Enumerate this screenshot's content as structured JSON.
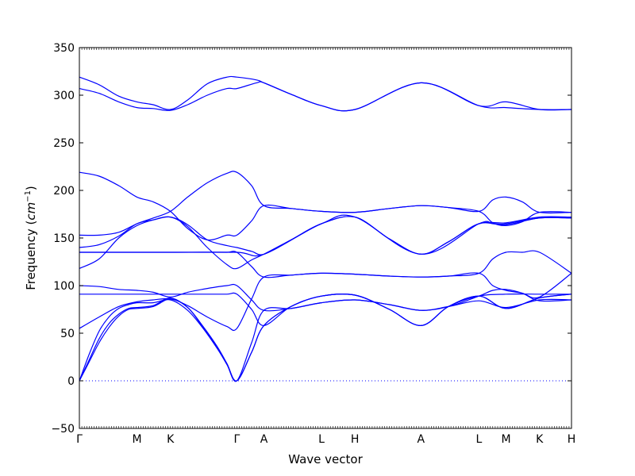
{
  "chart_data": {
    "type": "line",
    "xlabel": "Wave vector",
    "ylabel": "Frequency",
    "ylabel_unit_base": "cm",
    "ylabel_unit_exp": "−1",
    "ylim": [
      -50,
      350
    ],
    "yticks": [
      -50,
      0,
      50,
      100,
      150,
      200,
      250,
      300,
      350
    ],
    "grid": false,
    "line_color": "#0000ff",
    "zero_line": {
      "y": 0,
      "style": "dotted"
    },
    "high_symmetry_points": [
      {
        "label": "Γ",
        "pos": 0
      },
      {
        "label": "M",
        "pos": 0.117
      },
      {
        "label": "K",
        "pos": 0.185
      },
      {
        "label": "Γ",
        "pos": 0.32
      },
      {
        "label": "A",
        "pos": 0.375
      },
      {
        "label": "L",
        "pos": 0.492
      },
      {
        "label": "H",
        "pos": 0.56
      },
      {
        "label": "A",
        "pos": 0.694
      },
      {
        "label": "L",
        "pos": 0.812
      },
      {
        "label": "M",
        "pos": 0.867
      },
      {
        "label": "K",
        "pos": 0.935
      },
      {
        "label": "H",
        "pos": 1.0
      }
    ],
    "series": [
      {
        "x": [
          0,
          0.04,
          0.08,
          0.117,
          0.15,
          0.185,
          0.22,
          0.26,
          0.3,
          0.32,
          0.36,
          0.375,
          0.43,
          0.492,
          0.56,
          0.694,
          0.812,
          0.867,
          0.935,
          1.0
        ],
        "y": [
          319,
          311,
          299,
          293,
          290,
          285,
          295,
          312,
          319,
          319,
          316,
          313,
          301,
          289,
          285,
          313,
          289,
          293,
          285,
          285
        ]
      },
      {
        "x": [
          0,
          0.04,
          0.08,
          0.117,
          0.15,
          0.185,
          0.22,
          0.26,
          0.3,
          0.32,
          0.36,
          0.375,
          0.43,
          0.492,
          0.56,
          0.694,
          0.812,
          0.867,
          0.935,
          1.0
        ],
        "y": [
          307,
          302,
          293,
          287,
          286,
          284,
          290,
          300,
          307,
          307,
          313,
          313,
          301,
          289,
          285,
          313,
          289,
          287,
          285,
          285
        ]
      },
      {
        "x": [
          0,
          0.04,
          0.08,
          0.117,
          0.15,
          0.185,
          0.22,
          0.26,
          0.3,
          0.32,
          0.35,
          0.375,
          0.43,
          0.492,
          0.56,
          0.63,
          0.694,
          0.75,
          0.812,
          0.84,
          0.867,
          0.9,
          0.935,
          1.0
        ],
        "y": [
          219,
          215,
          205,
          193,
          188,
          178,
          160,
          148,
          153,
          153,
          168,
          184,
          181,
          178,
          177,
          181,
          184,
          182,
          178,
          190,
          193,
          188,
          177,
          177
        ]
      },
      {
        "x": [
          0,
          0.04,
          0.08,
          0.117,
          0.15,
          0.185,
          0.22,
          0.26,
          0.3,
          0.32,
          0.35,
          0.375,
          0.43,
          0.492,
          0.56,
          0.63,
          0.694,
          0.75,
          0.812,
          0.84,
          0.867,
          0.9,
          0.935,
          1.0
        ],
        "y": [
          153,
          153,
          156,
          165,
          171,
          178,
          193,
          208,
          218,
          219,
          205,
          184,
          181,
          178,
          177,
          181,
          184,
          182,
          178,
          166,
          163,
          167,
          177,
          177
        ]
      },
      {
        "x": [
          0,
          0.04,
          0.08,
          0.117,
          0.15,
          0.185,
          0.22,
          0.26,
          0.3,
          0.32,
          0.35,
          0.375,
          0.43,
          0.492,
          0.56,
          0.63,
          0.694,
          0.75,
          0.812,
          0.867,
          0.935,
          1.0
        ],
        "y": [
          140,
          143,
          152,
          165,
          169,
          172,
          164,
          148,
          142,
          140,
          136,
          133,
          148,
          165,
          172,
          149,
          133,
          146,
          165,
          166,
          172,
          172
        ]
      },
      {
        "x": [
          0,
          0.04,
          0.08,
          0.117,
          0.15,
          0.185,
          0.22,
          0.26,
          0.3,
          0.32,
          0.35,
          0.375,
          0.43,
          0.492,
          0.56,
          0.63,
          0.694,
          0.75,
          0.812,
          0.867,
          0.935,
          1.0
        ],
        "y": [
          118,
          128,
          150,
          163,
          169,
          172,
          162,
          140,
          122,
          118,
          127,
          133,
          148,
          165,
          172,
          149,
          133,
          146,
          165,
          164,
          171,
          171
        ]
      },
      {
        "x": [
          0,
          0.117,
          0.185,
          0.32,
          0.375,
          0.492,
          0.56,
          0.694,
          0.812,
          0.84,
          0.867,
          0.935,
          1.0
        ],
        "y": [
          135,
          135,
          135,
          135,
          133,
          165,
          172,
          133,
          165,
          165,
          165,
          171,
          171
        ]
      },
      {
        "x": [
          0,
          0.04,
          0.08,
          0.117,
          0.15,
          0.185,
          0.22,
          0.26,
          0.3,
          0.32,
          0.35,
          0.375,
          0.43,
          0.492,
          0.56,
          0.63,
          0.694,
          0.75,
          0.812,
          0.84,
          0.867,
          0.9,
          0.935,
          1.0
        ],
        "y": [
          135,
          135,
          135,
          135,
          135,
          135,
          135,
          135,
          135,
          135,
          120,
          109,
          111,
          113,
          112,
          110,
          109,
          110,
          113,
          128,
          135,
          135,
          135,
          113
        ]
      },
      {
        "x": [
          0,
          0.04,
          0.08,
          0.117,
          0.15,
          0.185,
          0.22,
          0.26,
          0.3,
          0.32,
          0.35,
          0.375,
          0.43,
          0.492,
          0.56,
          0.63,
          0.694,
          0.75,
          0.812,
          0.84,
          0.867,
          0.9,
          0.935,
          1.0
        ],
        "y": [
          100,
          99,
          96,
          95,
          93,
          88,
          93,
          97,
          100,
          100,
          85,
          74,
          76,
          82,
          85,
          80,
          74,
          78,
          89,
          95,
          96,
          92,
          84,
          85
        ]
      },
      {
        "x": [
          0,
          0.04,
          0.08,
          0.117,
          0.15,
          0.185,
          0.22,
          0.26,
          0.3,
          0.32,
          0.35,
          0.375,
          0.43,
          0.492,
          0.56,
          0.63,
          0.694,
          0.75,
          0.812,
          0.867,
          0.935,
          1.0
        ],
        "y": [
          91,
          91,
          91,
          91,
          91,
          91,
          91,
          91,
          91,
          91,
          75,
          58,
          78,
          89,
          90,
          75,
          58,
          78,
          89,
          91,
          91,
          91
        ]
      },
      {
        "x": [
          0,
          0.04,
          0.08,
          0.117,
          0.15,
          0.185,
          0.22,
          0.26,
          0.3,
          0.32,
          0.35,
          0.375,
          0.43,
          0.492,
          0.56,
          0.63,
          0.694,
          0.75,
          0.812,
          0.84,
          0.867,
          0.9,
          0.935,
          1.0
        ],
        "y": [
          55,
          67,
          78,
          83,
          85,
          86,
          79,
          67,
          57,
          55,
          86,
          109,
          111,
          113,
          112,
          110,
          109,
          110,
          113,
          100,
          95,
          92,
          88,
          113
        ]
      },
      {
        "x": [
          0,
          0.02,
          0.04,
          0.06,
          0.08,
          0.1,
          0.117,
          0.15,
          0.185,
          0.22,
          0.25,
          0.28,
          0.3,
          0.32,
          0.35,
          0.375,
          0.43,
          0.492,
          0.56,
          0.63,
          0.694,
          0.75,
          0.812,
          0.867,
          0.935,
          1.0
        ],
        "y": [
          0,
          28,
          52,
          67,
          76,
          80,
          82,
          82,
          85,
          74,
          56,
          34,
          17,
          0,
          40,
          74,
          76,
          82,
          85,
          80,
          74,
          78,
          84,
          77,
          85,
          85
        ]
      },
      {
        "x": [
          0,
          0.02,
          0.04,
          0.06,
          0.08,
          0.1,
          0.117,
          0.15,
          0.185,
          0.22,
          0.25,
          0.28,
          0.3,
          0.32,
          0.35,
          0.375,
          0.43,
          0.492,
          0.56,
          0.63,
          0.694,
          0.75,
          0.812,
          0.867,
          0.935,
          1.0
        ],
        "y": [
          0,
          22,
          44,
          60,
          70,
          76,
          77,
          79,
          87,
          77,
          58,
          36,
          18,
          0,
          30,
          58,
          78,
          89,
          90,
          75,
          58,
          78,
          89,
          76,
          87,
          91
        ]
      },
      {
        "x": [
          0,
          0.02,
          0.04,
          0.06,
          0.08,
          0.1,
          0.117,
          0.15,
          0.185,
          0.22,
          0.25,
          0.28,
          0.3,
          0.32,
          0.35,
          0.375,
          0.43,
          0.492,
          0.56,
          0.63,
          0.694,
          0.75,
          0.812,
          0.867,
          0.935,
          1.0
        ],
        "y": [
          0,
          20,
          40,
          56,
          68,
          75,
          76,
          78,
          86,
          77,
          57,
          35,
          17,
          0,
          30,
          58,
          78,
          89,
          90,
          75,
          58,
          78,
          89,
          76,
          87,
          91
        ]
      }
    ]
  }
}
